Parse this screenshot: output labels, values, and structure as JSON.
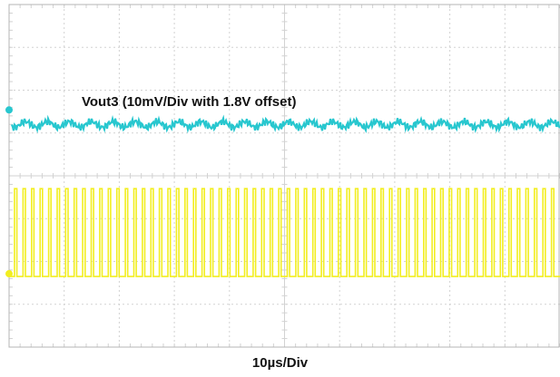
{
  "chart_data": {
    "type": "line",
    "title": "",
    "xlabel": "10µs/Div",
    "ylabel": "",
    "grid": true,
    "divisions": {
      "horizontal": 10,
      "vertical": 8
    },
    "series": [
      {
        "name": "Vout3 (10mV/Div with 1.8V offset)",
        "color": "#28c7cf",
        "kind": "ripple",
        "level_div_from_top": 2.8,
        "ripple_peak_to_peak_div": 0.3
      },
      {
        "color": "#f2ee20",
        "kind": "pulse",
        "low_div_from_top": 6.35,
        "high_div_from_top": 4.3,
        "pulse_count": 64,
        "duty_cycle": 0.28
      }
    ]
  },
  "colors": {
    "grid": "#d2d2d2",
    "frame": "#b4b4b4",
    "marker_ch": "#28c7cf",
    "marker_ch2": "#f2ee20"
  }
}
